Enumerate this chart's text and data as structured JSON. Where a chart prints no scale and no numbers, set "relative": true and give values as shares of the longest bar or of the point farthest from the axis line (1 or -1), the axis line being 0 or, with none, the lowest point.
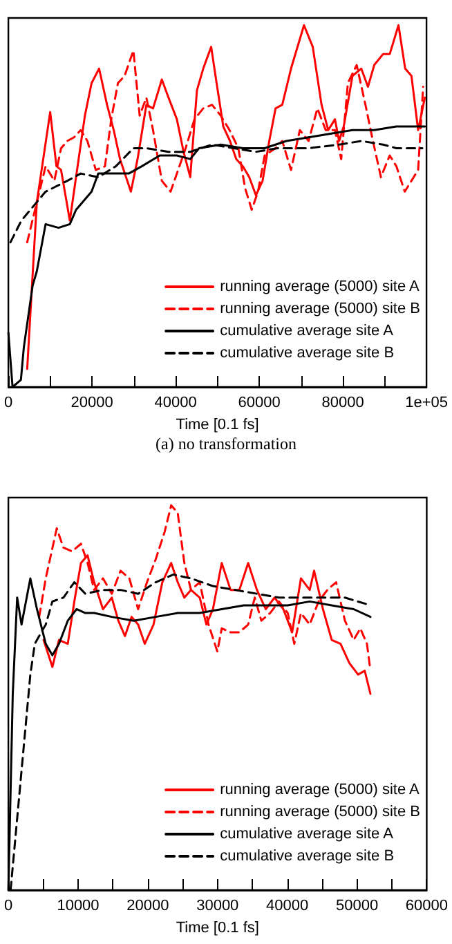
{
  "chart_data": [
    {
      "type": "line",
      "relative": true,
      "xlabel": "Time [0.1 fs]",
      "annotations": [
        "(a) no transformation"
      ],
      "xlim": [
        0,
        100000
      ],
      "xticks": [
        0,
        {
          "value": 10000,
          "label": null
        },
        20000,
        {
          "value": 30000,
          "label": null
        },
        40000,
        {
          "value": 50000,
          "label": null
        },
        60000,
        {
          "value": 70000,
          "label": null
        },
        80000,
        {
          "value": 90000,
          "label": null
        },
        {
          "value": 100000,
          "label": "1e+05"
        }
      ],
      "legend": "bottom right",
      "marker": "none",
      "grid": false,
      "series": [
        {
          "name": "running average (5000) site A",
          "color": "#ff0000",
          "line_style": "solid",
          "x": [
            4500,
            6800,
            10000,
            11500,
            12600,
            14700,
            16800,
            18300,
            19900,
            21700,
            23600,
            25200,
            26700,
            29300,
            30900,
            33000,
            34600,
            36700,
            38300,
            40300,
            41900,
            43500,
            45100,
            46600,
            48500,
            49800,
            51400,
            53000,
            54500,
            56100,
            57600,
            59200,
            60800,
            62400,
            63900,
            65500,
            67600,
            70700,
            72800,
            74900,
            76500,
            78100,
            79100,
            80200,
            82300,
            84400,
            86000,
            87500,
            89600,
            91200,
            93300,
            94900,
            96400,
            98000,
            99600
          ],
          "values": [
            0.05,
            0.51,
            0.76,
            0.61,
            0.6,
            0.46,
            0.63,
            0.75,
            0.84,
            0.88,
            0.78,
            0.71,
            0.63,
            0.54,
            0.63,
            0.78,
            0.77,
            0.85,
            0.8,
            0.74,
            0.65,
            0.58,
            0.82,
            0.88,
            0.94,
            0.84,
            0.72,
            0.68,
            0.63,
            0.61,
            0.58,
            0.53,
            0.57,
            0.68,
            0.77,
            0.78,
            0.88,
            1.0,
            0.94,
            0.78,
            0.71,
            0.74,
            0.68,
            0.72,
            0.86,
            0.88,
            0.83,
            0.89,
            0.92,
            0.92,
            1.0,
            0.88,
            0.86,
            0.71,
            0.8
          ]
        },
        {
          "name": "running average (5000) site B",
          "color": "#ff0000",
          "line_style": "dashed",
          "x": [
            4500,
            6800,
            8900,
            11000,
            12600,
            14100,
            15700,
            17300,
            18900,
            20900,
            23100,
            24600,
            26200,
            27800,
            29900,
            31400,
            33000,
            34600,
            36700,
            38800,
            40900,
            42400,
            44500,
            46600,
            48700,
            50800,
            52900,
            55000,
            56600,
            58200,
            59700,
            61300,
            63900,
            65500,
            67600,
            69700,
            71800,
            73900,
            75900,
            78100,
            79600,
            81200,
            83300,
            85400,
            87000,
            89100,
            91200,
            92800,
            94800,
            96400,
            98000,
            99200
          ],
          "values": [
            0.4,
            0.51,
            0.61,
            0.57,
            0.66,
            0.68,
            0.69,
            0.71,
            0.68,
            0.6,
            0.61,
            0.74,
            0.84,
            0.86,
            0.93,
            0.75,
            0.8,
            0.71,
            0.57,
            0.54,
            0.61,
            0.66,
            0.74,
            0.77,
            0.78,
            0.75,
            0.71,
            0.66,
            0.55,
            0.49,
            0.54,
            0.64,
            0.66,
            0.68,
            0.6,
            0.71,
            0.68,
            0.77,
            0.71,
            0.71,
            0.63,
            0.84,
            0.89,
            0.78,
            0.69,
            0.58,
            0.64,
            0.61,
            0.54,
            0.57,
            0.6,
            0.83
          ]
        },
        {
          "name": "cumulative average site A",
          "color": "#000000",
          "line_style": "solid",
          "x": [
            0,
            1000,
            3000,
            3700,
            5800,
            6800,
            8900,
            12000,
            14700,
            16200,
            19900,
            21500,
            24600,
            28800,
            31900,
            36200,
            40300,
            43500,
            45600,
            50800,
            56100,
            61300,
            66500,
            71800,
            77000,
            82300,
            87500,
            92800,
            99600
          ],
          "values": [
            0.15,
            0,
            0.02,
            0.11,
            0.28,
            0.32,
            0.45,
            0.44,
            0.45,
            0.49,
            0.54,
            0.59,
            0.59,
            0.59,
            0.61,
            0.64,
            0.64,
            0.63,
            0.66,
            0.67,
            0.66,
            0.66,
            0.68,
            0.69,
            0.7,
            0.71,
            0.71,
            0.72,
            0.72
          ]
        },
        {
          "name": "cumulative average site B",
          "color": "#000000",
          "line_style": "dashed",
          "x": [
            500,
            3100,
            8900,
            14100,
            17300,
            21500,
            25700,
            29900,
            33000,
            38300,
            43500,
            48700,
            53900,
            59200,
            64400,
            71800,
            79100,
            84400,
            89600,
            92800,
            99000
          ],
          "values": [
            0.4,
            0.46,
            0.54,
            0.57,
            0.59,
            0.58,
            0.61,
            0.66,
            0.66,
            0.65,
            0.65,
            0.67,
            0.66,
            0.65,
            0.66,
            0.66,
            0.67,
            0.68,
            0.67,
            0.66,
            0.66
          ]
        }
      ]
    },
    {
      "type": "line",
      "relative": true,
      "xlabel": "Time [0.1 fs]",
      "xlim": [
        0,
        60000
      ],
      "xticks": [
        0,
        {
          "value": 5000,
          "label": null
        },
        10000,
        {
          "value": 15000,
          "label": null
        },
        20000,
        {
          "value": 25000,
          "label": null
        },
        30000,
        {
          "value": 35000,
          "label": null
        },
        40000,
        {
          "value": 45000,
          "label": null
        },
        50000,
        {
          "value": 55000,
          "label": null
        },
        60000
      ],
      "legend": "bottom right",
      "marker": "none",
      "grid": false,
      "series": [
        {
          "name": "running average (5000) site A",
          "color": "#ff0000",
          "line_style": "solid",
          "x": [
            5050,
            6310,
            7260,
            8520,
            9460,
            10410,
            11360,
            12300,
            13570,
            14830,
            15770,
            16720,
            17670,
            18610,
            19560,
            20820,
            22080,
            23350,
            24290,
            25240,
            26190,
            27450,
            28400,
            29340,
            30600,
            31870,
            33130,
            34390,
            35650,
            36910,
            38180,
            39440,
            40700,
            41960,
            43220,
            43850,
            45120,
            46380,
            47640,
            48900,
            50160,
            51110,
            51930
          ],
          "values": [
            0.65,
            0.58,
            0.65,
            0.64,
            0.75,
            0.85,
            0.87,
            0.8,
            0.73,
            0.76,
            0.7,
            0.66,
            0.71,
            0.69,
            0.64,
            0.69,
            0.8,
            0.85,
            0.8,
            0.76,
            0.78,
            0.76,
            0.69,
            0.73,
            0.85,
            0.78,
            0.78,
            0.85,
            0.78,
            0.73,
            0.76,
            0.73,
            0.67,
            0.81,
            0.78,
            0.83,
            0.73,
            0.65,
            0.64,
            0.59,
            0.56,
            0.57,
            0.51
          ]
        },
        {
          "name": "running average (5000) site B",
          "color": "#ff0000",
          "line_style": "dashed",
          "x": [
            4420,
            5360,
            6940,
            7890,
            9150,
            10410,
            11360,
            12300,
            13570,
            14830,
            16090,
            17350,
            18610,
            19880,
            21140,
            22400,
            23350,
            24290,
            25240,
            26190,
            27450,
            28710,
            29970,
            30600,
            31870,
            33130,
            34390,
            35340,
            36280,
            37540,
            38810,
            40070,
            41010,
            41960,
            43220,
            44490,
            45750,
            47010,
            48270,
            49530,
            50480,
            51430,
            51930
          ],
          "values": [
            0.71,
            0.81,
            0.94,
            0.89,
            0.88,
            0.9,
            0.85,
            0.78,
            0.81,
            0.77,
            0.83,
            0.81,
            0.73,
            0.8,
            0.86,
            0.93,
            1.0,
            0.98,
            0.85,
            0.78,
            0.8,
            0.69,
            0.62,
            0.68,
            0.67,
            0.67,
            0.69,
            0.76,
            0.7,
            0.72,
            0.75,
            0.72,
            0.64,
            0.72,
            0.69,
            0.75,
            0.78,
            0.8,
            0.7,
            0.65,
            0.68,
            0.64,
            0.57
          ]
        },
        {
          "name": "cumulative average site A",
          "color": "#000000",
          "line_style": "solid",
          "x": [
            0,
            630,
            1260,
            1890,
            3150,
            4100,
            5360,
            6310,
            7260,
            8520,
            9780,
            11040,
            12300,
            14830,
            17980,
            21140,
            24290,
            27450,
            30600,
            33760,
            36910,
            40070,
            43220,
            46380,
            49530,
            51930
          ],
          "values": [
            0,
            0.51,
            0.76,
            0.69,
            0.81,
            0.73,
            0.64,
            0.61,
            0.64,
            0.7,
            0.73,
            0.72,
            0.72,
            0.71,
            0.7,
            0.71,
            0.72,
            0.72,
            0.73,
            0.74,
            0.74,
            0.74,
            0.75,
            0.74,
            0.73,
            0.71
          ]
        },
        {
          "name": "cumulative average site B",
          "color": "#000000",
          "line_style": "dashed",
          "x": [
            320,
            3150,
            3790,
            5360,
            6310,
            7890,
            9460,
            11040,
            13570,
            16090,
            18610,
            21140,
            23660,
            26190,
            29340,
            32500,
            35650,
            38810,
            41960,
            45120,
            48270,
            51930
          ],
          "values": [
            0,
            0.56,
            0.64,
            0.69,
            0.75,
            0.76,
            0.8,
            0.77,
            0.78,
            0.78,
            0.77,
            0.8,
            0.82,
            0.81,
            0.79,
            0.78,
            0.77,
            0.76,
            0.76,
            0.76,
            0.76,
            0.74
          ]
        }
      ]
    }
  ]
}
